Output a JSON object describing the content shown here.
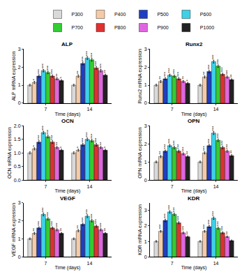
{
  "chart_data": [
    {
      "type": "bar",
      "title": "ALP",
      "x_label": "Time (days)",
      "y_label": "ALP mRNA expression",
      "legend": "top",
      "categories": [
        "7",
        "14"
      ],
      "ylim": [
        0,
        3
      ],
      "yticks": [
        0,
        1,
        2,
        3
      ],
      "series": [
        {
          "name": "P300",
          "color": "#d9d9d9",
          "values": [
            1.0,
            1.0
          ],
          "errors": [
            0.05,
            0.05
          ],
          "significance": [
            null,
            null
          ]
        },
        {
          "name": "P400",
          "color": "#f5cba7",
          "values": [
            1.15,
            1.5
          ],
          "errors": [
            0.06,
            0.07
          ],
          "significance": [
            "*",
            "**"
          ]
        },
        {
          "name": "P500",
          "color": "#1f3fbf",
          "values": [
            1.5,
            2.2
          ],
          "errors": [
            0.07,
            0.08
          ],
          "significance": [
            "***",
            "***"
          ]
        },
        {
          "name": "P600",
          "color": "#3fd0e6",
          "values": [
            1.8,
            2.5
          ],
          "errors": [
            0.07,
            0.08
          ],
          "significance": [
            "***",
            "***"
          ]
        },
        {
          "name": "P700",
          "color": "#33cc33",
          "values": [
            1.7,
            2.4
          ],
          "errors": [
            0.07,
            0.08
          ],
          "significance": [
            "***",
            "***"
          ]
        },
        {
          "name": "P800",
          "color": "#e03030",
          "values": [
            1.5,
            1.95
          ],
          "errors": [
            0.06,
            0.07
          ],
          "significance": [
            "***",
            "***"
          ]
        },
        {
          "name": "P900",
          "color": "#e066e0",
          "values": [
            1.35,
            1.8
          ],
          "errors": [
            0.06,
            0.07
          ],
          "significance": [
            "**",
            "***"
          ]
        },
        {
          "name": "P1000",
          "color": "#222222",
          "values": [
            1.25,
            1.55
          ],
          "errors": [
            0.05,
            0.06
          ],
          "significance": [
            "*",
            "**"
          ]
        }
      ]
    },
    {
      "type": "bar",
      "title": "Runx2",
      "x_label": "Time (days)",
      "y_label": "Runx2 mRNA expression",
      "categories": [
        "7",
        "14"
      ],
      "ylim": [
        0,
        3
      ],
      "yticks": [
        0,
        1,
        2,
        3
      ],
      "series": [
        {
          "name": "P300",
          "color": "#d9d9d9",
          "values": [
            1.0,
            1.0
          ],
          "errors": [
            0.05,
            0.05
          ],
          "significance": [
            null,
            null
          ]
        },
        {
          "name": "P400",
          "color": "#f5cba7",
          "values": [
            1.2,
            1.45
          ],
          "errors": [
            0.06,
            0.06
          ],
          "significance": [
            "**",
            "**"
          ]
        },
        {
          "name": "P500",
          "color": "#1f3fbf",
          "values": [
            1.35,
            1.75
          ],
          "errors": [
            0.06,
            0.07
          ],
          "significance": [
            "***",
            "***"
          ]
        },
        {
          "name": "P600",
          "color": "#3fd0e6",
          "values": [
            1.55,
            2.3
          ],
          "errors": [
            0.06,
            0.08
          ],
          "significance": [
            "***",
            "***"
          ]
        },
        {
          "name": "P700",
          "color": "#33cc33",
          "values": [
            1.5,
            2.05
          ],
          "errors": [
            0.06,
            0.07
          ],
          "significance": [
            "***",
            "***"
          ]
        },
        {
          "name": "P800",
          "color": "#e03030",
          "values": [
            1.35,
            1.6
          ],
          "errors": [
            0.06,
            0.06
          ],
          "significance": [
            "***",
            "***"
          ]
        },
        {
          "name": "P900",
          "color": "#e066e0",
          "values": [
            1.2,
            1.45
          ],
          "errors": [
            0.05,
            0.06
          ],
          "significance": [
            "**",
            "***"
          ]
        },
        {
          "name": "P1000",
          "color": "#222222",
          "values": [
            1.1,
            1.3
          ],
          "errors": [
            0.05,
            0.05
          ],
          "significance": [
            "*",
            "**"
          ]
        }
      ]
    },
    {
      "type": "bar",
      "title": "OCN",
      "x_label": "Time (days)",
      "y_label": "OCN mRNA expression",
      "categories": [
        "7",
        "14"
      ],
      "ylim": [
        0,
        2
      ],
      "yticks": [
        {
          "value": 0,
          "label": "0.0"
        },
        {
          "value": 0.5,
          "label": "0.5"
        },
        {
          "value": 1,
          "label": "1.0"
        },
        {
          "value": 1.5,
          "label": "1.5"
        },
        {
          "value": 2,
          "label": "2.0"
        }
      ],
      "series": [
        {
          "name": "P300",
          "color": "#d9d9d9",
          "values": [
            1.0,
            1.0
          ],
          "errors": [
            0.04,
            0.04
          ],
          "significance": [
            null,
            null
          ]
        },
        {
          "name": "P400",
          "color": "#f5cba7",
          "values": [
            1.15,
            1.1
          ],
          "errors": [
            0.04,
            0.04
          ],
          "significance": [
            "*",
            "*"
          ]
        },
        {
          "name": "P500",
          "color": "#1f3fbf",
          "values": [
            1.4,
            1.3
          ],
          "errors": [
            0.05,
            0.05
          ],
          "significance": [
            "***",
            "***"
          ]
        },
        {
          "name": "P600",
          "color": "#3fd0e6",
          "values": [
            1.75,
            1.5
          ],
          "errors": [
            0.05,
            0.05
          ],
          "significance": [
            "***",
            "***"
          ]
        },
        {
          "name": "P700",
          "color": "#33cc33",
          "values": [
            1.6,
            1.45
          ],
          "errors": [
            0.05,
            0.05
          ],
          "significance": [
            "***",
            "***"
          ]
        },
        {
          "name": "P800",
          "color": "#e03030",
          "values": [
            1.4,
            1.3
          ],
          "errors": [
            0.05,
            0.05
          ],
          "significance": [
            "***",
            "***"
          ]
        },
        {
          "name": "P900",
          "color": "#e066e0",
          "values": [
            1.2,
            1.2
          ],
          "errors": [
            0.04,
            0.04
          ],
          "significance": [
            "**",
            "**"
          ]
        },
        {
          "name": "P1000",
          "color": "#222222",
          "values": [
            1.1,
            1.1
          ],
          "errors": [
            0.04,
            0.04
          ],
          "significance": [
            "*",
            "*"
          ]
        }
      ]
    },
    {
      "type": "bar",
      "title": "OPN",
      "x_label": "Time (days)",
      "y_label": "OPN mRNA expression",
      "categories": [
        "7",
        "14"
      ],
      "ylim": [
        0,
        3
      ],
      "yticks": [
        0,
        1,
        2,
        3
      ],
      "series": [
        {
          "name": "P300",
          "color": "#d9d9d9",
          "values": [
            1.0,
            1.0
          ],
          "errors": [
            0.05,
            0.05
          ],
          "significance": [
            null,
            null
          ]
        },
        {
          "name": "P400",
          "color": "#f5cba7",
          "values": [
            1.3,
            1.5
          ],
          "errors": [
            0.06,
            0.06
          ],
          "significance": [
            "**",
            "***"
          ]
        },
        {
          "name": "P500",
          "color": "#1f3fbf",
          "values": [
            1.6,
            1.9
          ],
          "errors": [
            0.06,
            0.07
          ],
          "significance": [
            "***",
            "***"
          ]
        },
        {
          "name": "P600",
          "color": "#3fd0e6",
          "values": [
            1.9,
            2.6
          ],
          "errors": [
            0.07,
            0.08
          ],
          "significance": [
            "***",
            "***"
          ]
        },
        {
          "name": "P700",
          "color": "#33cc33",
          "values": [
            1.8,
            2.2
          ],
          "errors": [
            0.07,
            0.07
          ],
          "significance": [
            "***",
            "***"
          ]
        },
        {
          "name": "P800",
          "color": "#e03030",
          "values": [
            1.6,
            1.8
          ],
          "errors": [
            0.06,
            0.07
          ],
          "significance": [
            "***",
            "***"
          ]
        },
        {
          "name": "P900",
          "color": "#e066e0",
          "values": [
            1.45,
            1.6
          ],
          "errors": [
            0.06,
            0.06
          ],
          "significance": [
            "***",
            "***"
          ]
        },
        {
          "name": "P1000",
          "color": "#222222",
          "values": [
            1.3,
            1.35
          ],
          "errors": [
            0.05,
            0.05
          ],
          "significance": [
            "**",
            "**"
          ]
        }
      ]
    },
    {
      "type": "bar",
      "title": "VEGF",
      "x_label": "Time (days)",
      "y_label": "VEGF mRNA expression",
      "categories": [
        "7",
        "14"
      ],
      "ylim": [
        0,
        3
      ],
      "yticks": [
        0,
        1,
        2,
        3
      ],
      "series": [
        {
          "name": "P300",
          "color": "#d9d9d9",
          "values": [
            1.0,
            1.0
          ],
          "errors": [
            0.05,
            0.05
          ],
          "significance": [
            null,
            null
          ]
        },
        {
          "name": "P400",
          "color": "#f5cba7",
          "values": [
            1.3,
            1.45
          ],
          "errors": [
            0.06,
            0.06
          ],
          "significance": [
            "**",
            "**"
          ]
        },
        {
          "name": "P500",
          "color": "#1f3fbf",
          "values": [
            1.6,
            1.8
          ],
          "errors": [
            0.06,
            0.07
          ],
          "significance": [
            "***",
            "***"
          ]
        },
        {
          "name": "P600",
          "color": "#3fd0e6",
          "values": [
            2.35,
            2.25
          ],
          "errors": [
            0.08,
            0.08
          ],
          "significance": [
            "***",
            "***"
          ]
        },
        {
          "name": "P700",
          "color": "#33cc33",
          "values": [
            2.1,
            2.0
          ],
          "errors": [
            0.07,
            0.07
          ],
          "significance": [
            "***",
            "***"
          ]
        },
        {
          "name": "P800",
          "color": "#e03030",
          "values": [
            1.6,
            1.7
          ],
          "errors": [
            0.06,
            0.06
          ],
          "significance": [
            "***",
            "***"
          ]
        },
        {
          "name": "P900",
          "color": "#e066e0",
          "values": [
            1.5,
            1.5
          ],
          "errors": [
            0.06,
            0.06
          ],
          "significance": [
            "***",
            "***"
          ]
        },
        {
          "name": "P1000",
          "color": "#222222",
          "values": [
            1.3,
            1.3
          ],
          "errors": [
            0.05,
            0.05
          ],
          "significance": [
            "**",
            "**"
          ]
        }
      ]
    },
    {
      "type": "bar",
      "title": "KDR",
      "x_label": "Time (days)",
      "y_label": "KDR mRNA expression",
      "categories": [
        "7",
        "14"
      ],
      "ylim": [
        0,
        3.5
      ],
      "yticks": [
        0,
        1,
        2,
        3
      ],
      "series": [
        {
          "name": "P300",
          "color": "#d9d9d9",
          "values": [
            1.0,
            1.0
          ],
          "errors": [
            0.05,
            0.05
          ],
          "significance": [
            null,
            null
          ]
        },
        {
          "name": "P400",
          "color": "#f5cba7",
          "values": [
            1.65,
            1.65
          ],
          "errors": [
            0.06,
            0.06
          ],
          "significance": [
            "***",
            "***"
          ]
        },
        {
          "name": "P500",
          "color": "#1f3fbf",
          "values": [
            2.35,
            1.95
          ],
          "errors": [
            0.08,
            0.07
          ],
          "significance": [
            "***",
            "***"
          ]
        },
        {
          "name": "P600",
          "color": "#3fd0e6",
          "values": [
            2.9,
            2.5
          ],
          "errors": [
            0.08,
            0.08
          ],
          "significance": [
            "***",
            "***"
          ]
        },
        {
          "name": "P700",
          "color": "#33cc33",
          "values": [
            2.75,
            1.85
          ],
          "errors": [
            0.08,
            0.07
          ],
          "significance": [
            "***",
            "***"
          ]
        },
        {
          "name": "P800",
          "color": "#e03030",
          "values": [
            2.2,
            1.55
          ],
          "errors": [
            0.07,
            0.06
          ],
          "significance": [
            "***",
            "***"
          ]
        },
        {
          "name": "P900",
          "color": "#e066e0",
          "values": [
            1.55,
            1.3
          ],
          "errors": [
            0.06,
            0.05
          ],
          "significance": [
            "***",
            "**"
          ]
        },
        {
          "name": "P1000",
          "color": "#222222",
          "values": [
            1.3,
            1.05
          ],
          "errors": [
            0.05,
            0.04
          ],
          "significance": [
            "**",
            null
          ]
        }
      ]
    }
  ]
}
